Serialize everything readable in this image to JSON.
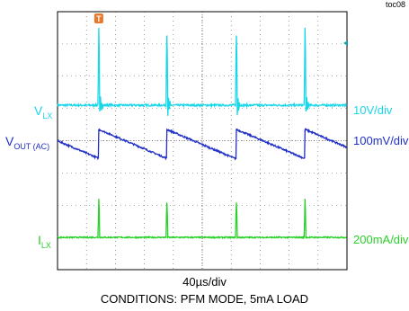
{
  "figure_id": "toc08",
  "chart_data": {
    "type": "line",
    "title": "",
    "xlabel": "40µs/div",
    "caption": "CONDITIONS: PFM MODE, 5mA LOAD",
    "x_divisions": 10,
    "y_divisions": 8,
    "x_range_us": [
      0,
      400
    ],
    "grid": true,
    "series": [
      {
        "name": "V",
        "subscript": "LX",
        "scale": "10V/div",
        "color": "#19d6e8",
        "pulse_times_us": [
          57,
          151,
          247,
          342
        ],
        "baseline_div": 5.1,
        "peak_div": 7.5
      },
      {
        "name": "V",
        "subscript": "OUT (AC)",
        "scale": "100mV/div",
        "color": "#1f2ec8",
        "waveform": "sawtooth",
        "reset_times_us": [
          57,
          151,
          247,
          342
        ],
        "high_div": 4.35,
        "low_div": 3.45
      },
      {
        "name": "I",
        "subscript": "LX",
        "scale": "200mA/div",
        "color": "#2bd02b",
        "pulse_times_us": [
          57,
          151,
          247,
          342
        ],
        "baseline_div": 1.0,
        "peak_div": 2.2
      }
    ],
    "markers": [
      {
        "name": "trigger",
        "label": "T",
        "color": "#e8782a"
      },
      {
        "name": "level",
        "color": "#14a0b4"
      }
    ]
  }
}
